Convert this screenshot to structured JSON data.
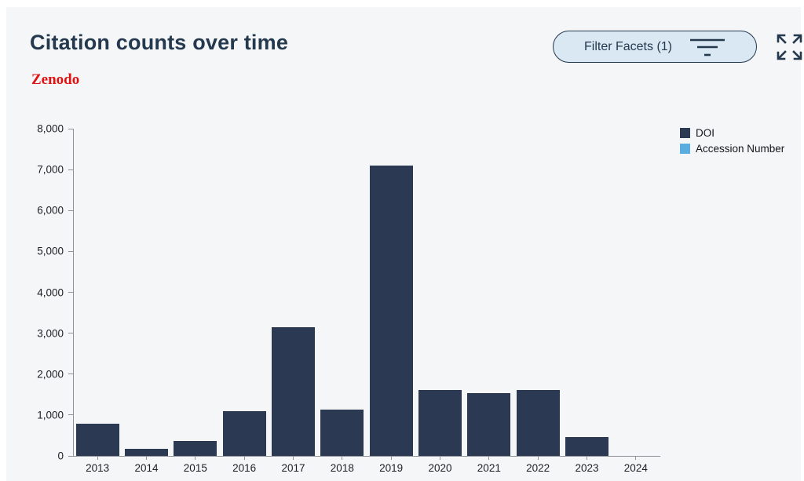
{
  "header": {
    "title": "Citation counts over time",
    "source_label": "Zenodo",
    "filter_button_label": "Filter Facets (1)"
  },
  "icons": {
    "filter_icon": "filter-lines",
    "expand_icon": "expand-arrows"
  },
  "colors": {
    "panel_background": "#f4f6f8",
    "title_navy": "#24384e",
    "source_red": "#e01111",
    "filter_button_fill": "#d9e8f2",
    "axis_gray": "#8f9299",
    "bar_navy": "#2b3a52",
    "accession_blue": "#5bade0"
  },
  "chart_data": {
    "type": "bar",
    "title": "Citation counts over time",
    "categories": [
      "2013",
      "2014",
      "2015",
      "2016",
      "2017",
      "2018",
      "2019",
      "2020",
      "2021",
      "2022",
      "2023",
      "2024"
    ],
    "series": [
      {
        "name": "DOI",
        "color": "#2b3a52",
        "values": [
          790,
          180,
          370,
          1100,
          3140,
          1140,
          7100,
          1620,
          1540,
          1620,
          470,
          0
        ]
      },
      {
        "name": "Accession Number",
        "color": "#5bade0",
        "values": [
          0,
          0,
          0,
          0,
          0,
          0,
          0,
          0,
          0,
          0,
          0,
          0
        ]
      }
    ],
    "xlabel": "",
    "ylabel": "",
    "ylim": [
      0,
      8000
    ],
    "ytick_step": 1000,
    "yticks": [
      "0",
      "1,000",
      "2,000",
      "3,000",
      "4,000",
      "5,000",
      "6,000",
      "7,000",
      "8,000"
    ],
    "grid": false,
    "legend_position": "top-right"
  }
}
